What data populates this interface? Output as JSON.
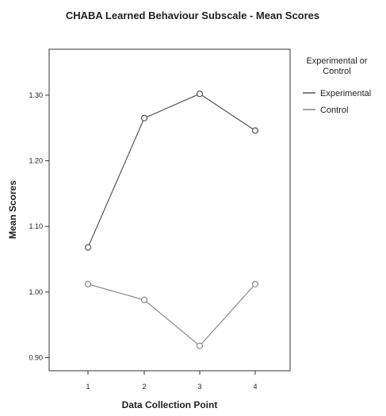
{
  "chart_data": {
    "type": "line",
    "title": "CHABA Learned Behaviour Subscale - Mean Scores",
    "xlabel": "Data Collection Point",
    "ylabel": "Mean Scores",
    "categories": [
      "1",
      "2",
      "3",
      "4"
    ],
    "ylim": [
      0.88,
      1.37
    ],
    "yticks": [
      0.9,
      1.0,
      1.1,
      1.2,
      1.3
    ],
    "ytick_labels": [
      "0.90",
      "1.00",
      "1.10",
      "1.20",
      "1.30"
    ],
    "grid": false,
    "legend": {
      "title_line1": "Experimental or",
      "title_line2": "Control",
      "placement": "right"
    },
    "series": [
      {
        "name": "Experimental",
        "values": [
          1.068,
          1.265,
          1.302,
          1.246
        ],
        "color": "#555555"
      },
      {
        "name": "Control",
        "values": [
          1.012,
          0.988,
          0.918,
          1.012
        ],
        "color": "#888888"
      }
    ]
  }
}
